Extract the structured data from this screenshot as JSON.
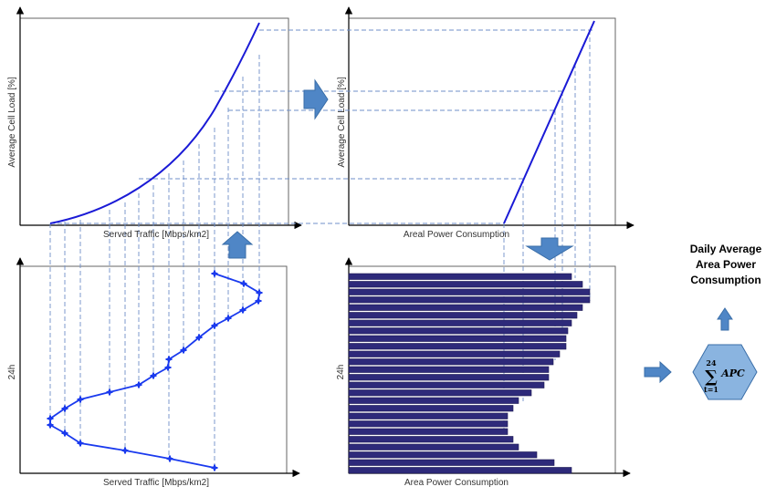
{
  "colors": {
    "curve": "#1a1ad6",
    "marker": "#1a3aee",
    "bars": "#2e2a7a",
    "dashed": "#6f8fc8",
    "arrow_fill": "#4f86c6",
    "arrow_stroke": "#3a6ea8",
    "hexagon": "#8ab4e0",
    "frame": "#666666"
  },
  "panels": {
    "top_left": {
      "xlabel": "Served Traffic [Mbps/km2]",
      "ylabel": "Average Cell Load [%]"
    },
    "top_right": {
      "xlabel": "Areal Power Consumption",
      "ylabel": "Average Cell Load [%]"
    },
    "bottom_left": {
      "xlabel": "Served Traffic [Mbps/km2]",
      "ylabel": "24h"
    },
    "bottom_right": {
      "xlabel": "Area Power Consumption",
      "ylabel": "24h"
    }
  },
  "result": {
    "title_lines": [
      "Daily Average",
      "Area Power",
      "Consumption"
    ],
    "sum_upper": "24",
    "sum_symbol": "∑",
    "sum_lower": "t=1",
    "sum_term": "APC"
  },
  "chart_data": [
    {
      "type": "line",
      "panel": "top_left",
      "xlabel": "Served Traffic [Mbps/km2]",
      "ylabel": "Average Cell Load [%]",
      "curve": "convex, increasing"
    },
    {
      "type": "line",
      "panel": "top_right",
      "xlabel": "Areal Power Consumption",
      "ylabel": "Average Cell Load [%]",
      "curve": "linear, increasing"
    },
    {
      "type": "line",
      "panel": "bottom_left",
      "xlabel": "Served Traffic [Mbps/km2]",
      "ylabel": "24h",
      "points_per_day": 24
    },
    {
      "type": "bar",
      "panel": "bottom_right",
      "xlabel": "Area Power Consumption",
      "ylabel": "24h",
      "bars_per_day": 24
    }
  ]
}
